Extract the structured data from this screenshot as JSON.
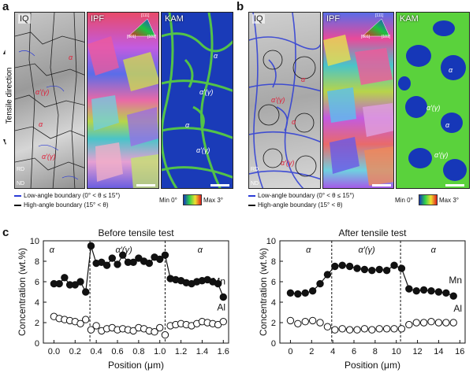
{
  "panel_labels": {
    "a": "a",
    "b": "b",
    "c": "c"
  },
  "map_titles": {
    "iq": "IQ",
    "ipf": "IPF",
    "kam": "KAM"
  },
  "tensile_direction": "Tensile direction",
  "rd": "RD",
  "nd": "ND",
  "ipf_key": {
    "c111": "[111]",
    "c001": "[001]",
    "c101": "[101]"
  },
  "phases": {
    "alpha": "α",
    "alpha_prime": "α′(γ)"
  },
  "boundary_legend": {
    "low": "Low-angle boundary (0° < θ ≤ 15°)",
    "high": "High-angle boundary (15° < θ)"
  },
  "kam_scale": {
    "min": "Min 0°",
    "max": "Max 3°"
  },
  "colors": {
    "low_boundary": "#2b3bd6",
    "high_boundary": "#111111",
    "kam_low": "#1637b8",
    "kam_high": "#56d43a"
  },
  "chart_data": [
    {
      "type": "line",
      "title": "Before tensile test",
      "xlabel": "Position (μm)",
      "ylabel": "Concentration (wt.%)",
      "xlim": [
        -0.1,
        1.65
      ],
      "ylim": [
        0,
        10
      ],
      "xticks": [
        0.0,
        0.2,
        0.4,
        0.6,
        0.8,
        1.0,
        1.2,
        1.4,
        1.6
      ],
      "yticks": [
        0,
        2,
        4,
        6,
        8,
        10
      ],
      "dividers": [
        0.34,
        1.05
      ],
      "regions": [
        {
          "label": "α",
          "x": -0.02
        },
        {
          "label": "α′(γ)",
          "x": 0.66
        },
        {
          "label": "α",
          "x": 1.38
        }
      ],
      "series": [
        {
          "name": "Mn",
          "marker": "filled",
          "x": [
            0.0,
            0.05,
            0.1,
            0.15,
            0.2,
            0.25,
            0.3,
            0.35,
            0.4,
            0.45,
            0.5,
            0.55,
            0.6,
            0.65,
            0.7,
            0.75,
            0.8,
            0.85,
            0.9,
            0.95,
            1.0,
            1.05,
            1.1,
            1.15,
            1.2,
            1.25,
            1.3,
            1.35,
            1.4,
            1.45,
            1.5,
            1.55,
            1.6
          ],
          "values": [
            5.8,
            5.8,
            6.4,
            5.7,
            5.7,
            6.0,
            5.0,
            9.5,
            7.8,
            7.9,
            7.6,
            8.3,
            7.7,
            8.6,
            7.9,
            7.9,
            8.3,
            8.0,
            7.8,
            8.4,
            8.2,
            8.6,
            6.3,
            6.2,
            6.1,
            5.9,
            5.8,
            6.0,
            6.1,
            6.2,
            6.0,
            5.8,
            4.5
          ]
        },
        {
          "name": "Al",
          "marker": "open",
          "x": [
            0.0,
            0.05,
            0.1,
            0.15,
            0.2,
            0.25,
            0.3,
            0.35,
            0.4,
            0.45,
            0.5,
            0.55,
            0.6,
            0.65,
            0.7,
            0.75,
            0.8,
            0.85,
            0.9,
            0.95,
            1.0,
            1.05,
            1.1,
            1.15,
            1.2,
            1.25,
            1.3,
            1.35,
            1.4,
            1.45,
            1.5,
            1.55,
            1.6
          ],
          "values": [
            2.6,
            2.4,
            2.3,
            2.2,
            2.1,
            1.9,
            2.3,
            1.3,
            1.7,
            1.2,
            1.4,
            1.5,
            1.3,
            1.4,
            1.3,
            1.2,
            1.5,
            1.4,
            1.2,
            1.1,
            1.5,
            0.8,
            1.7,
            1.8,
            1.9,
            1.8,
            1.7,
            1.9,
            2.1,
            2.0,
            1.9,
            1.8,
            2.1
          ]
        }
      ]
    },
    {
      "type": "line",
      "title": "After tensile test",
      "xlabel": "Position (μm)",
      "ylabel": "Concentration (wt.%)",
      "xlim": [
        -1,
        16.5
      ],
      "ylim": [
        0,
        10
      ],
      "xticks": [
        0,
        2,
        4,
        6,
        8,
        10,
        12,
        14,
        16
      ],
      "yticks": [
        0,
        2,
        4,
        6,
        8,
        10
      ],
      "dividers": [
        3.9,
        10.4
      ],
      "regions": [
        {
          "label": "α",
          "x": 1.7
        },
        {
          "label": "α′(γ)",
          "x": 7.2
        },
        {
          "label": "α",
          "x": 13.5
        }
      ],
      "series": [
        {
          "name": "Mn",
          "marker": "filled",
          "x": [
            0,
            0.7,
            1.4,
            2.1,
            2.8,
            3.5,
            4.2,
            4.9,
            5.6,
            6.3,
            7.0,
            7.7,
            8.4,
            9.1,
            9.8,
            10.5,
            11.2,
            11.9,
            12.6,
            13.3,
            14.0,
            14.7,
            15.4
          ],
          "values": [
            4.9,
            4.8,
            4.9,
            5.1,
            5.8,
            6.7,
            7.5,
            7.6,
            7.5,
            7.3,
            7.2,
            7.1,
            7.2,
            7.1,
            7.6,
            7.3,
            5.3,
            5.1,
            5.2,
            5.1,
            5.0,
            4.9,
            4.6
          ]
        },
        {
          "name": "Al",
          "marker": "open",
          "x": [
            0,
            0.7,
            1.4,
            2.1,
            2.8,
            3.5,
            4.2,
            4.9,
            5.6,
            6.3,
            7.0,
            7.7,
            8.4,
            9.1,
            9.8,
            10.5,
            11.2,
            11.9,
            12.6,
            13.3,
            14.0,
            14.7,
            15.4
          ],
          "values": [
            2.2,
            1.9,
            2.1,
            2.2,
            2.0,
            1.6,
            1.3,
            1.4,
            1.3,
            1.3,
            1.4,
            1.3,
            1.4,
            1.4,
            1.4,
            1.4,
            1.8,
            2.0,
            2.0,
            2.1,
            2.0,
            2.0,
            2.0
          ]
        }
      ]
    }
  ]
}
